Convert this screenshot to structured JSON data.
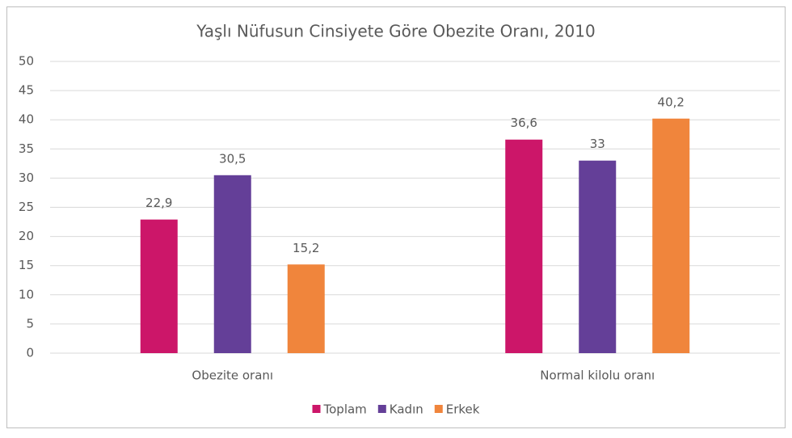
{
  "chart_data": {
    "type": "bar",
    "title": "Yaşlı Nüfusun Cinsiyete Göre Obezite Oranı, 2010",
    "categories": [
      "Obezite oranı",
      "Normal kilolu oranı"
    ],
    "series": [
      {
        "name": "Toplam",
        "color": "#cc1669",
        "values": [
          22.9,
          36.6
        ],
        "value_labels": [
          "22,9",
          "36,6"
        ]
      },
      {
        "name": "Kadın",
        "color": "#643f98",
        "values": [
          30.5,
          33
        ],
        "value_labels": [
          "30,5",
          "33"
        ]
      },
      {
        "name": "Erkek",
        "color": "#f0853c",
        "values": [
          15.2,
          40.2
        ],
        "value_labels": [
          "15,2",
          "40,2"
        ]
      }
    ],
    "ylim": [
      0,
      50
    ],
    "yticks": [
      0,
      5,
      10,
      15,
      20,
      25,
      30,
      35,
      40,
      45,
      50
    ],
    "grid": true,
    "legend": "bottom"
  }
}
